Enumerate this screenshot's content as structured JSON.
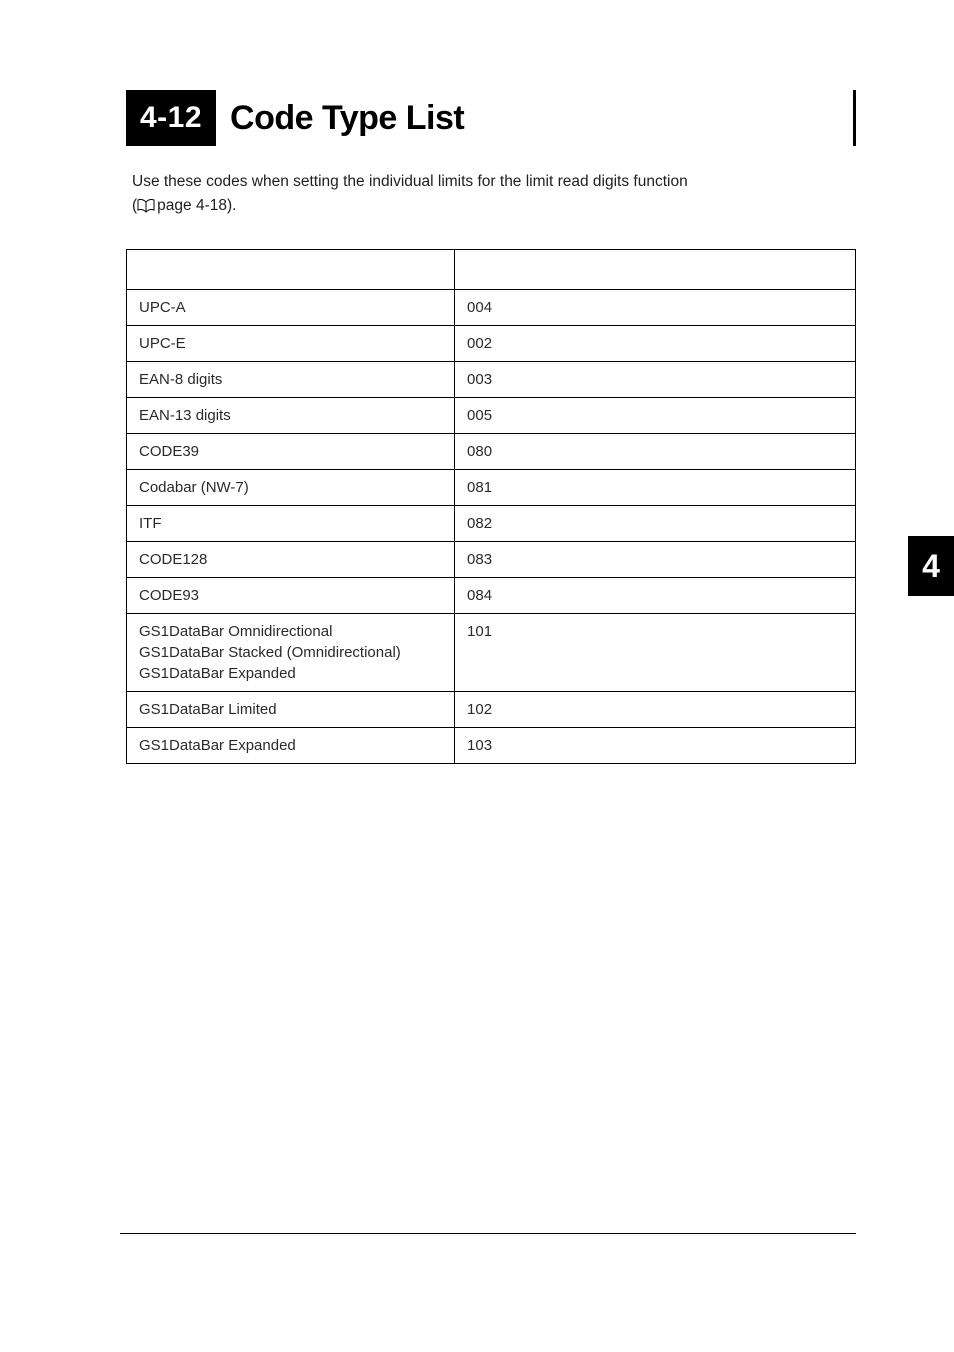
{
  "heading": {
    "number": "4-12",
    "title": "Code Type List"
  },
  "intro": {
    "line1": "Use these codes when setting the individual limits for the limit read digits function",
    "line2_prefix": "(",
    "line2_ref": "page 4-18).",
    "book_icon_color": "#000000"
  },
  "table": {
    "header": {
      "col1": "",
      "col2": ""
    },
    "rows": [
      {
        "name": "UPC-A",
        "code": "004",
        "multi": false
      },
      {
        "name": "UPC-E",
        "code": "002",
        "multi": false
      },
      {
        "name": "EAN-8 digits",
        "code": "003",
        "multi": false
      },
      {
        "name": "EAN-13 digits",
        "code": "005",
        "multi": false
      },
      {
        "name": "CODE39",
        "code": "080",
        "multi": false
      },
      {
        "name": "Codabar (NW-7)",
        "code": "081",
        "multi": false
      },
      {
        "name": "ITF",
        "code": "082",
        "multi": false
      },
      {
        "name": "CODE128",
        "code": "083",
        "multi": false
      },
      {
        "name": "CODE93",
        "code": "084",
        "multi": false
      },
      {
        "name_lines": [
          "GS1DataBar Omnidirectional",
          "GS1DataBar Stacked (Omnidirectional)",
          "GS1DataBar Expanded"
        ],
        "code": "101",
        "multi": true
      },
      {
        "name": "GS1DataBar Limited",
        "code": "102",
        "multi": false
      },
      {
        "name": "GS1DataBar Expanded",
        "code": "103",
        "multi": false
      }
    ]
  },
  "side_tab": {
    "label": "4",
    "bg": "#000000",
    "fg": "#ffffff"
  }
}
